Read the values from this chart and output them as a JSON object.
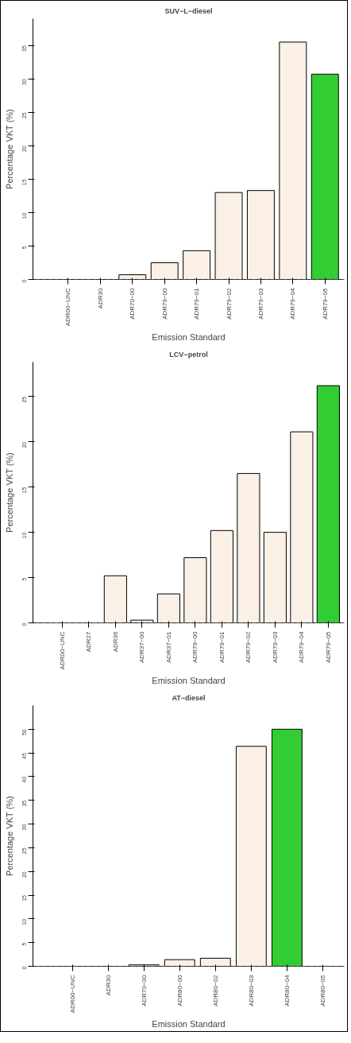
{
  "chart_data": [
    {
      "type": "bar",
      "title": "SUV−L−diesel",
      "xlabel": "Emission Standard",
      "ylabel": "Percentage VKT (%)",
      "categories": [
        "ADR00−UNC",
        "ADR30",
        "ADR70−00",
        "ADR79−00",
        "ADR79−01",
        "ADR79−02",
        "ADR79−03",
        "ADR79−04",
        "ADR79−05"
      ],
      "values": [
        0,
        0,
        0.7,
        2.5,
        4.3,
        13.0,
        13.3,
        35.5,
        30.7
      ],
      "colors": [
        "#faf0e6",
        "#faf0e6",
        "#faf0e6",
        "#faf0e6",
        "#faf0e6",
        "#faf0e6",
        "#faf0e6",
        "#faf0e6",
        "#32cd32"
      ],
      "ylim": [
        0,
        39
      ],
      "yticks": [
        0,
        5,
        10,
        15,
        20,
        25,
        30,
        35
      ],
      "ref_lines": [
        {
          "axis": "y",
          "value": 0,
          "line_style": "dashed"
        }
      ]
    },
    {
      "type": "bar",
      "title": "LCV−petrol",
      "xlabel": "Emission Standard",
      "ylabel": "Percentage VKT (%)",
      "categories": [
        "ADR00−UNC",
        "ADR27",
        "ADR36",
        "ADR37−00",
        "ADR37−01",
        "ADR79−00",
        "ADR79−01",
        "ADR79−02",
        "ADR79−03",
        "ADR79−04",
        "ADR79−05"
      ],
      "values": [
        0,
        0,
        5.2,
        0.3,
        3.2,
        7.2,
        10.2,
        16.5,
        10.0,
        21.1,
        26.2
      ],
      "colors": [
        "#faf0e6",
        "#faf0e6",
        "#faf0e6",
        "#faf0e6",
        "#faf0e6",
        "#faf0e6",
        "#faf0e6",
        "#faf0e6",
        "#faf0e6",
        "#faf0e6",
        "#32cd32"
      ],
      "ylim": [
        0,
        28.8
      ],
      "yticks": [
        0,
        5,
        10,
        15,
        20,
        25
      ],
      "ref_lines": [
        {
          "axis": "y",
          "value": 0,
          "line_style": "dashed"
        }
      ]
    },
    {
      "type": "bar",
      "title": "AT−diesel",
      "xlabel": "Emission Standard",
      "ylabel": "Percentage VKT (%)",
      "categories": [
        "ADR00−UNC",
        "ADR30",
        "ADR70−00",
        "ADR80−00",
        "ADR80−02",
        "ADR80−03",
        "ADR80−04",
        "ADR80−05"
      ],
      "values": [
        0,
        0,
        0.3,
        1.4,
        1.7,
        46.4,
        50.0,
        0
      ],
      "colors": [
        "#faf0e6",
        "#faf0e6",
        "#faf0e6",
        "#faf0e6",
        "#faf0e6",
        "#faf0e6",
        "#32cd32",
        "#faf0e6"
      ],
      "ylim": [
        0,
        55
      ],
      "yticks": [
        0,
        5,
        10,
        15,
        20,
        25,
        30,
        35,
        40,
        45,
        50
      ],
      "ref_lines": [
        {
          "axis": "y",
          "value": 0,
          "line_style": "dashed"
        }
      ]
    }
  ]
}
